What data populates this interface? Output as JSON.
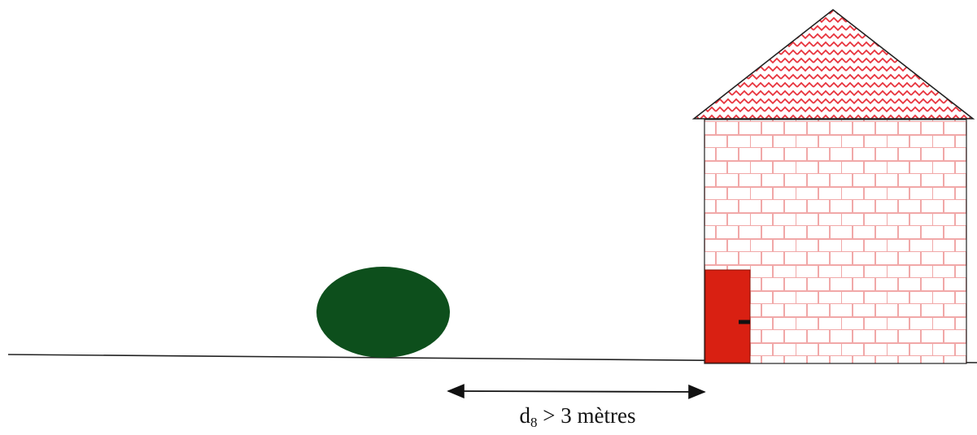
{
  "diagram": {
    "distance_label": {
      "symbol": "d",
      "subscript": "8",
      "text": " > 3 mètres"
    },
    "colors": {
      "ground": "#222222",
      "bush": "#0d4f1c",
      "brick_line": "#f1a8a8",
      "roof_wave": "#e8323c",
      "outline": "#222222",
      "door": "#d92012",
      "door_handle": "#111111"
    },
    "elements": [
      "ground-line",
      "bush",
      "house",
      "door",
      "distance-arrow"
    ]
  }
}
